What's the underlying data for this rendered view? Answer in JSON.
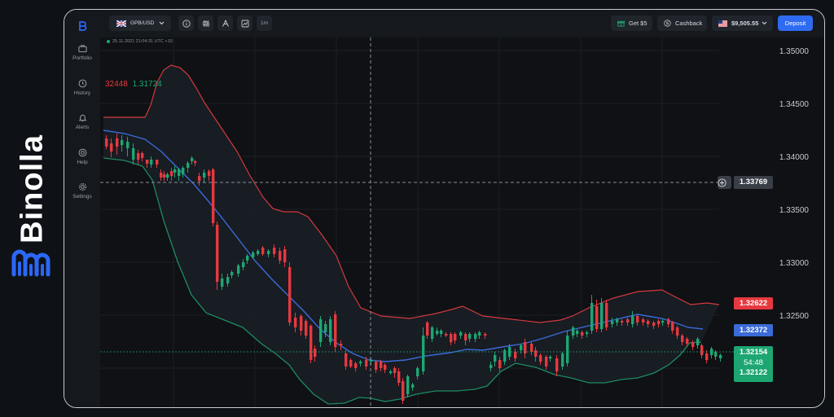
{
  "brand": {
    "name": "Binolla"
  },
  "sidebar": {
    "items": [
      {
        "label": "Portfolio",
        "icon": "briefcase-icon"
      },
      {
        "label": "History",
        "icon": "clock-icon"
      },
      {
        "label": "Alerts",
        "icon": "bell-icon"
      },
      {
        "label": "Help",
        "icon": "lifebuoy-icon"
      },
      {
        "label": "Settings",
        "icon": "gear-icon"
      }
    ]
  },
  "topbar": {
    "pair": "GPB/USD",
    "timeframe": "1m",
    "bonus_label": "Get $5",
    "cashback_label": "Cashback",
    "balance": "$9,505.55",
    "deposit_label": "Deposit"
  },
  "chart": {
    "timestamp": "25.11.2021  21:04:31  UTC +10",
    "indicator_upper": "32448",
    "indicator_lower": "1.31724",
    "ticks": [
      "1.35000",
      "1.34500",
      "1.34000",
      "1.33500",
      "1.33000",
      "1.32500"
    ],
    "crosshair_price": "1.33769",
    "upper_band_price": "1.32622",
    "middle_band_price": "1.32372",
    "current_price": "1.32154",
    "countdown": "54:48",
    "lower_band_price": "1.32122"
  },
  "colors": {
    "up": "#1ea672",
    "down": "#e5393f",
    "upper_band": "#d2393f",
    "middle_band": "#3a6bd8",
    "lower_band": "#1e8a62",
    "deposit": "#2f6bf0",
    "brand_blue": "#2b67f6"
  }
}
